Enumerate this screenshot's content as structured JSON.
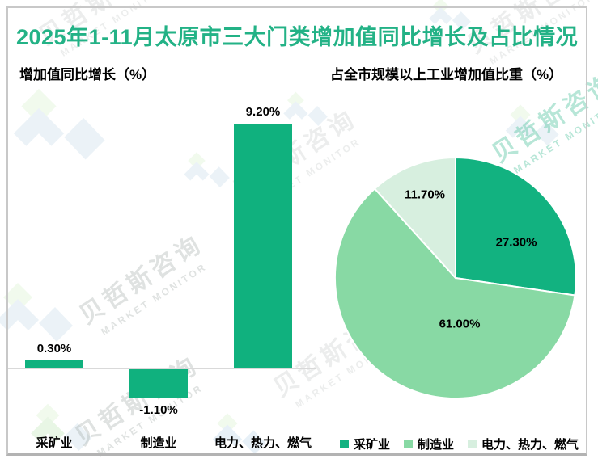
{
  "title": "2025年1-11月太原市三大门类增加值同比增长及占比情况",
  "watermark": {
    "cn": "贝哲斯咨询",
    "en": "MARKET MONITOR"
  },
  "colors": {
    "title": "#23B286",
    "bar": "#10B17E",
    "pie": [
      "#12B280",
      "#88D9A4",
      "#D7EFDF"
    ],
    "axis_line": "#D9D9D9"
  },
  "chart_data": [
    {
      "type": "bar",
      "title": "增加值同比增长（%）",
      "categories": [
        "采矿业",
        "制造业",
        "电力、热力、燃气"
      ],
      "values": [
        0.3,
        -1.1,
        9.2
      ],
      "value_labels": [
        "0.30%",
        "-1.10%",
        "9.20%"
      ],
      "ylim": [
        -1.5,
        9.7
      ],
      "grid": false,
      "baseline": 0,
      "bar_color": "#10B17E"
    },
    {
      "type": "pie",
      "title": "占全市规模以上工业增加值比重（%）",
      "categories": [
        "采矿业",
        "制造业",
        "电力、热力、燃气"
      ],
      "values": [
        27.3,
        61.0,
        11.7
      ],
      "value_labels": [
        "27.30%",
        "61.00%",
        "11.70%"
      ],
      "slice_colors": [
        "#12B280",
        "#88D9A4",
        "#D7EFDF"
      ],
      "start_angle_deg": 0,
      "direction": "clockwise",
      "legend_position": "bottom-right"
    }
  ]
}
